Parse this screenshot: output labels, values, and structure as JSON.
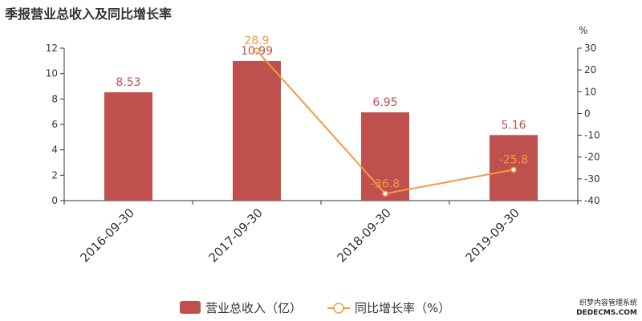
{
  "title": "季报营业总收入及同比增长率",
  "right_axis_unit": "%",
  "watermark": {
    "line1": "织梦内容管理系统",
    "line2": "DEDECMS.COM"
  },
  "colors": {
    "bar": "#c0504d",
    "line": "#f29b43",
    "axis": "#333333",
    "grid": "#cccccc",
    "title": "#333333"
  },
  "chart_data": {
    "type": "bar",
    "categories": [
      "2016-09-30",
      "2017-09-30",
      "2018-09-30",
      "2019-09-30"
    ],
    "series": [
      {
        "name": "营业总收入（亿）",
        "type": "bar",
        "axis": "left",
        "values": [
          8.53,
          10.99,
          6.95,
          5.16
        ],
        "labels": [
          "8.53",
          "10.99",
          "6.95",
          "5.16"
        ]
      },
      {
        "name": "同比增长率（%）",
        "type": "line",
        "axis": "right",
        "values": [
          null,
          28.9,
          -36.8,
          -25.8
        ],
        "labels": [
          "",
          "28.9",
          "-36.8",
          "-25.8"
        ]
      }
    ],
    "ylim_left": [
      0,
      12
    ],
    "yticks_left": [
      0,
      2,
      4,
      6,
      8,
      10,
      12
    ],
    "ylim_right": [
      -40,
      30
    ],
    "yticks_right": [
      -40,
      -30,
      -20,
      -10,
      0,
      10,
      20,
      30
    ],
    "legend_position": "bottom-center",
    "grid": false
  }
}
